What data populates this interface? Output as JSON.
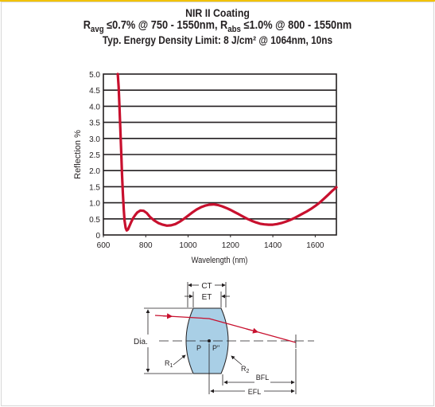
{
  "header": {
    "title": "NIR II Coating",
    "subtitle_line1": {
      "r1": "R",
      "r1_sub": "avg",
      "t1": " ≤0.7% @ 750 - 1550nm, ",
      "r2": "R",
      "r2_sub": "abs",
      "t2": " ≤1.0% @ 800 - 1550nm"
    },
    "subtitle_line2": "Typ. Energy Density Limit: 8 J/cm² @ 1064nm, 10ns"
  },
  "colors": {
    "accent": "#f2c200",
    "curve": "#c8102e",
    "grid": "#231f20",
    "lens_fill": "#a9cfe6",
    "ray": "#c8102e"
  },
  "chart_data": {
    "type": "line",
    "title": "",
    "xlabel": "Wavelength (nm)",
    "ylabel": "Reflection %",
    "xlim": [
      600,
      1700
    ],
    "ylim": [
      0,
      5.0
    ],
    "xticks": [
      600,
      800,
      1000,
      1200,
      1400,
      1600
    ],
    "xtick_labels": [
      "600",
      "800",
      "1000",
      "1200",
      "1400",
      "1600"
    ],
    "yticks": [
      0,
      0.5,
      1.0,
      1.5,
      2.0,
      2.5,
      3.0,
      3.5,
      4.0,
      4.5,
      5.0
    ],
    "ytick_labels": [
      "0",
      "0.5",
      "1.0",
      "1.5",
      "2.0",
      "2.5",
      "3.0",
      "3.5",
      "4.0",
      "4.5",
      "5.0"
    ],
    "grid": "horizontal",
    "series": [
      {
        "x": [
          668,
          672,
          676,
          680,
          684,
          688,
          692,
          696,
          700,
          705,
          710,
          716,
          722,
          730,
          740,
          750,
          760,
          775,
          790,
          805,
          820,
          840,
          860,
          880,
          900,
          920,
          940,
          960,
          980,
          1000,
          1020,
          1040,
          1060,
          1080,
          1100,
          1120,
          1140,
          1160,
          1180,
          1200,
          1220,
          1240,
          1260,
          1280,
          1300,
          1320,
          1340,
          1360,
          1380,
          1400,
          1420,
          1440,
          1460,
          1480,
          1500,
          1520,
          1540,
          1560,
          1580,
          1600,
          1620,
          1640,
          1660,
          1680,
          1700
        ],
        "y": [
          5.0,
          4.6,
          4.0,
          3.3,
          2.6,
          1.9,
          1.3,
          0.8,
          0.45,
          0.22,
          0.14,
          0.17,
          0.26,
          0.38,
          0.52,
          0.62,
          0.7,
          0.76,
          0.75,
          0.68,
          0.56,
          0.45,
          0.37,
          0.32,
          0.29,
          0.3,
          0.34,
          0.41,
          0.5,
          0.6,
          0.7,
          0.79,
          0.86,
          0.91,
          0.94,
          0.95,
          0.93,
          0.89,
          0.84,
          0.78,
          0.71,
          0.64,
          0.57,
          0.5,
          0.44,
          0.39,
          0.35,
          0.33,
          0.32,
          0.32,
          0.34,
          0.37,
          0.41,
          0.46,
          0.52,
          0.59,
          0.66,
          0.73,
          0.81,
          0.9,
          1.0,
          1.12,
          1.24,
          1.37,
          1.48
        ]
      }
    ]
  },
  "diagram": {
    "ct_label": "CT",
    "et_label": "ET",
    "dia_label": "Dia.",
    "p_label": "P",
    "p2_label": "P\"",
    "r1_label": "R",
    "r1_sub": "1",
    "r2_label": "R",
    "r2_sub": "2",
    "bfl_label": "BFL",
    "efl_label": "EFL"
  }
}
